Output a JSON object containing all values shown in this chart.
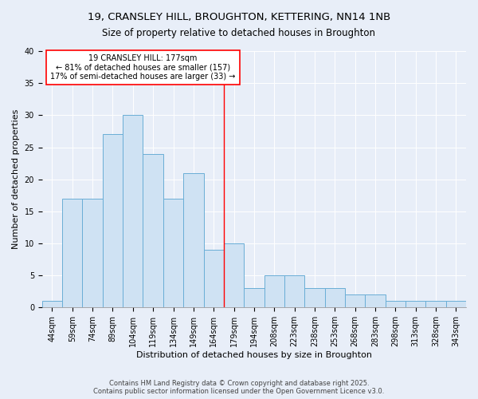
{
  "title": "19, CRANSLEY HILL, BROUGHTON, KETTERING, NN14 1NB",
  "subtitle": "Size of property relative to detached houses in Broughton",
  "xlabel": "Distribution of detached houses by size in Broughton",
  "ylabel": "Number of detached properties",
  "bin_labels": [
    "44sqm",
    "59sqm",
    "74sqm",
    "89sqm",
    "104sqm",
    "119sqm",
    "134sqm",
    "149sqm",
    "164sqm",
    "179sqm",
    "194sqm",
    "208sqm",
    "223sqm",
    "238sqm",
    "253sqm",
    "268sqm",
    "283sqm",
    "298sqm",
    "313sqm",
    "328sqm",
    "343sqm"
  ],
  "bar_values": [
    1,
    17,
    17,
    27,
    30,
    24,
    17,
    21,
    9,
    10,
    3,
    5,
    5,
    3,
    3,
    2,
    2,
    1,
    1,
    1,
    1
  ],
  "bar_color": "#cfe2f3",
  "bar_edge_color": "#6aaed6",
  "vline_x_idx": 9,
  "vline_color": "red",
  "annotation_text": "19 CRANSLEY HILL: 177sqm\n← 81% of detached houses are smaller (157)\n17% of semi-detached houses are larger (33) →",
  "annotation_box_color": "white",
  "annotation_box_edge": "red",
  "ylim": [
    0,
    40
  ],
  "yticks": [
    0,
    5,
    10,
    15,
    20,
    25,
    30,
    35,
    40
  ],
  "background_color": "#e8eef8",
  "footer_text": "Contains HM Land Registry data © Crown copyright and database right 2025.\nContains public sector information licensed under the Open Government Licence v3.0.",
  "title_fontsize": 9.5,
  "subtitle_fontsize": 8.5,
  "ylabel_fontsize": 8,
  "xlabel_fontsize": 8,
  "tick_fontsize": 7,
  "annot_fontsize": 7,
  "footer_fontsize": 6
}
